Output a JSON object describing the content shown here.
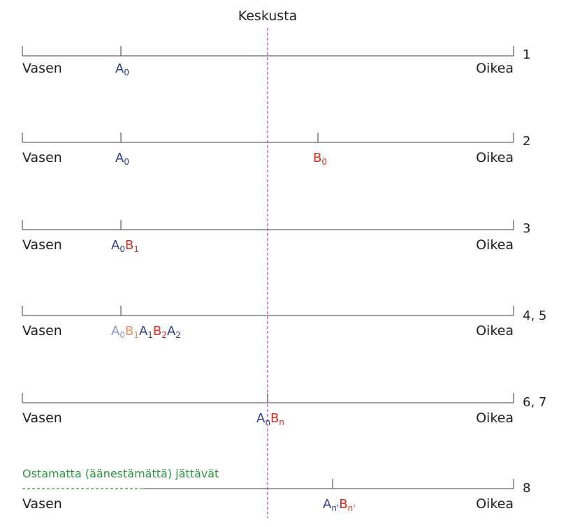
{
  "title": "Keskusta",
  "left_label": "Vasen",
  "right_label": "Oikea",
  "colors": {
    "axis": "#666666",
    "center_line": "#c040c0",
    "a": "#2e3f8f",
    "b": "#e02a20",
    "a_faded": "#8a95c8",
    "b_faded": "#e8906a",
    "non_buyers": "#2e9a3e"
  },
  "rows": [
    {
      "step": "1"
    },
    {
      "step": "2"
    },
    {
      "step": "3"
    },
    {
      "step": "4, 5"
    },
    {
      "step": "6, 7"
    },
    {
      "step": "8",
      "note": "Ostamatta (äänestämättä) jättävät"
    }
  ],
  "labels": {
    "r1_a": "A",
    "r1_a_sub": "0",
    "r2_a": "A",
    "r2_a_sub": "0",
    "r2_b": "B",
    "r2_b_sub": "0",
    "r3_a": "A",
    "r3_a_sub": "0",
    "r3_b": "B",
    "r3_b_sub": "1",
    "r4_a0": "A",
    "r4_a0_sub": "0",
    "r4_b1": "B",
    "r4_b1_sub": "1",
    "r4_a1": "A",
    "r4_a1_sub": "1",
    "r4_b2": "B",
    "r4_b2_sub": "2",
    "r4_a2": "A",
    "r4_a2_sub": "2",
    "r5_a": "A",
    "r5_a_sub": "n",
    "r5_b": "B",
    "r5_b_sub": "n",
    "r6_a": "A",
    "r6_a_sub": "n'",
    "r6_b": "B",
    "r6_b_sub": "n'"
  }
}
